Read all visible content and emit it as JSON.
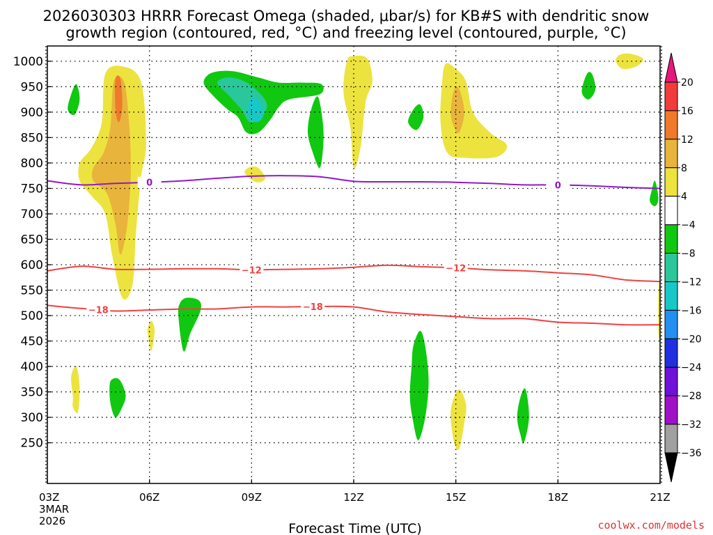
{
  "chart_data": {
    "type": "heatmap",
    "title_line1": "2026030303 HRRR Forecast Omega (shaded, μbar/s) for KB#S with dendritic snow",
    "title_line2": "growth region (contoured, red, °C) and freezing level (contoured, purple, °C)",
    "xlabel": "Forecast Time (UTC)",
    "ylabel": "",
    "credit": "coolwx.com/models",
    "x_ticks": [
      {
        "h": 0,
        "label": "03Z",
        "sub1": "3MAR",
        "sub2": "2026"
      },
      {
        "h": 3,
        "label": "06Z"
      },
      {
        "h": 6,
        "label": "09Z"
      },
      {
        "h": 9,
        "label": "12Z"
      },
      {
        "h": 12,
        "label": "15Z"
      },
      {
        "h": 15,
        "label": "18Z"
      },
      {
        "h": 18,
        "label": "21Z"
      }
    ],
    "xlim": [
      0,
      18
    ],
    "ylim": [
      1030,
      170
    ],
    "y_ticks": [
      250,
      300,
      350,
      400,
      450,
      500,
      550,
      600,
      650,
      700,
      750,
      800,
      850,
      900,
      950,
      1000
    ],
    "colorbar": {
      "levels": [
        -36,
        -32,
        -28,
        -24,
        -20,
        -16,
        -12,
        -8,
        -4,
        4,
        8,
        12,
        16,
        20
      ],
      "labels": [
        "20",
        "16",
        "12",
        "8",
        "4",
        "−4",
        "−8",
        "−12",
        "−16",
        "−20",
        "−24",
        "−28",
        "−32",
        "−36"
      ],
      "colors_top_to_bottom": [
        "#e8177a",
        "#f23c3c",
        "#f07a2a",
        "#e8b43c",
        "#ede33f",
        "#ffffff",
        "#10c810",
        "#2ac79a",
        "#18c8c8",
        "#2190f0",
        "#2030e0",
        "#7010d8",
        "#a010c8",
        "#a0a0a0",
        "#000000"
      ]
    },
    "contours": [
      {
        "name": "-18C",
        "color": "#f04040",
        "label": "−18",
        "points": [
          [
            0,
            520
          ],
          [
            1,
            514
          ],
          [
            2,
            509
          ],
          [
            3,
            511
          ],
          [
            4,
            513
          ],
          [
            5,
            513
          ],
          [
            6,
            517
          ],
          [
            7,
            517
          ],
          [
            8,
            518
          ],
          [
            9,
            517
          ],
          [
            10,
            507
          ],
          [
            11,
            502
          ],
          [
            12,
            498
          ],
          [
            13,
            494
          ],
          [
            14,
            494
          ],
          [
            15,
            487
          ],
          [
            16,
            485
          ],
          [
            17,
            482
          ],
          [
            18,
            482
          ]
        ],
        "label_at": [
          [
            1.5,
            512
          ],
          [
            7.8,
            520
          ]
        ]
      },
      {
        "name": "-12C",
        "color": "#f04040",
        "label": "−12",
        "points": [
          [
            0,
            588
          ],
          [
            1,
            597
          ],
          [
            2,
            591
          ],
          [
            3,
            591
          ],
          [
            4,
            592
          ],
          [
            5,
            592
          ],
          [
            6,
            590
          ],
          [
            7,
            591
          ],
          [
            8,
            592
          ],
          [
            9,
            595
          ],
          [
            10,
            599
          ],
          [
            11,
            596
          ],
          [
            12,
            594
          ],
          [
            13,
            590
          ],
          [
            14,
            588
          ],
          [
            15,
            584
          ],
          [
            16,
            580
          ],
          [
            17,
            570
          ],
          [
            18,
            567
          ]
        ],
        "label_at": [
          [
            6.0,
            593
          ],
          [
            12.0,
            596
          ]
        ]
      },
      {
        "name": "0C freezing level",
        "color": "#9018c8",
        "label": "0",
        "points": [
          [
            0,
            765
          ],
          [
            1,
            757
          ],
          [
            2,
            760
          ],
          [
            3,
            762
          ],
          [
            4,
            765
          ],
          [
            5,
            770
          ],
          [
            6,
            774
          ],
          [
            7,
            775
          ],
          [
            8,
            773
          ],
          [
            9,
            764
          ],
          [
            10,
            763
          ],
          [
            11,
            763
          ],
          [
            12,
            762
          ],
          [
            13,
            760
          ],
          [
            14,
            757
          ],
          [
            15,
            757
          ],
          [
            16,
            755
          ],
          [
            17,
            752
          ],
          [
            18,
            750
          ]
        ],
        "label_at": [
          [
            3.0,
            762
          ],
          [
            15.0,
            757
          ]
        ]
      }
    ],
    "omega_areas": [
      {
        "value": 6,
        "color": "#ede33f",
        "pts": [
          [
            0.95,
            765
          ],
          [
            1.3,
            735
          ],
          [
            1.7,
            700
          ],
          [
            1.9,
            620
          ],
          [
            2.2,
            535
          ],
          [
            2.5,
            560
          ],
          [
            2.6,
            660
          ],
          [
            2.75,
            770
          ],
          [
            2.9,
            840
          ],
          [
            2.75,
            960
          ],
          [
            2.2,
            990
          ],
          [
            1.7,
            975
          ],
          [
            1.6,
            880
          ],
          [
            1.3,
            830
          ],
          [
            0.95,
            800
          ]
        ]
      },
      {
        "value": 10,
        "color": "#e8b43c",
        "pts": [
          [
            1.35,
            765
          ],
          [
            1.75,
            740
          ],
          [
            2.0,
            680
          ],
          [
            2.15,
            620
          ],
          [
            2.35,
            680
          ],
          [
            2.45,
            780
          ],
          [
            2.4,
            880
          ],
          [
            2.25,
            960
          ],
          [
            1.95,
            960
          ],
          [
            1.85,
            870
          ],
          [
            1.65,
            820
          ],
          [
            1.35,
            790
          ]
        ]
      },
      {
        "value": 14,
        "color": "#f07a2a",
        "pts": [
          [
            2.0,
            905
          ],
          [
            2.1,
            880
          ],
          [
            2.2,
            910
          ],
          [
            2.15,
            965
          ],
          [
            2.0,
            965
          ]
        ]
      },
      {
        "value": 6,
        "color": "#ede33f",
        "pts": [
          [
            0.75,
            320
          ],
          [
            0.9,
            310
          ],
          [
            0.95,
            360
          ],
          [
            0.85,
            400
          ],
          [
            0.7,
            380
          ],
          [
            0.75,
            340
          ]
        ]
      },
      {
        "value": 6,
        "color": "#ede33f",
        "pts": [
          [
            2.95,
            465
          ],
          [
            3.05,
            430
          ],
          [
            3.15,
            470
          ],
          [
            3.05,
            490
          ],
          [
            2.95,
            475
          ]
        ]
      },
      {
        "value": 6,
        "color": "#ede33f",
        "pts": [
          [
            5.8,
            780
          ],
          [
            6.15,
            762
          ],
          [
            6.4,
            770
          ],
          [
            6.2,
            790
          ],
          [
            5.95,
            792
          ]
        ]
      },
      {
        "value": 6,
        "color": "#ede33f",
        "pts": [
          [
            8.8,
            1000
          ],
          [
            8.7,
            940
          ],
          [
            8.9,
            870
          ],
          [
            9.0,
            790
          ],
          [
            9.2,
            830
          ],
          [
            9.35,
            920
          ],
          [
            9.55,
            960
          ],
          [
            9.4,
            1005
          ],
          [
            9.0,
            1010
          ]
        ]
      },
      {
        "value": 6,
        "color": "#ede33f",
        "pts": [
          [
            11.85,
            300
          ],
          [
            11.95,
            250
          ],
          [
            12.1,
            238
          ],
          [
            12.25,
            290
          ],
          [
            12.3,
            325
          ],
          [
            12.1,
            355
          ],
          [
            11.9,
            330
          ]
        ]
      },
      {
        "value": 6,
        "color": "#ede33f",
        "pts": [
          [
            11.6,
            960
          ],
          [
            11.55,
            880
          ],
          [
            11.75,
            820
          ],
          [
            12.3,
            810
          ],
          [
            13.2,
            812
          ],
          [
            13.5,
            835
          ],
          [
            13.0,
            860
          ],
          [
            12.5,
            900
          ],
          [
            12.3,
            960
          ],
          [
            12.0,
            985
          ],
          [
            11.7,
            995
          ]
        ]
      },
      {
        "value": 10,
        "color": "#e8b43c",
        "pts": [
          [
            11.85,
            900
          ],
          [
            11.95,
            870
          ],
          [
            12.1,
            860
          ],
          [
            12.25,
            900
          ],
          [
            12.1,
            945
          ],
          [
            11.95,
            945
          ]
        ]
      },
      {
        "value": 6,
        "color": "#ede33f",
        "pts": [
          [
            16.7,
            1000
          ],
          [
            16.9,
            985
          ],
          [
            17.3,
            990
          ],
          [
            17.5,
            1005
          ],
          [
            17.1,
            1015
          ],
          [
            16.8,
            1012
          ]
        ]
      },
      {
        "value": 6,
        "color": "#ede33f",
        "pts": [
          [
            17.95,
            465
          ],
          [
            18.0,
            462
          ],
          [
            18.0,
            560
          ],
          [
            17.95,
            550
          ]
        ]
      },
      {
        "value": -6,
        "color": "#10c810",
        "pts": [
          [
            1.85,
            330
          ],
          [
            2.0,
            300
          ],
          [
            2.2,
            320
          ],
          [
            2.3,
            345
          ],
          [
            2.1,
            375
          ],
          [
            1.85,
            370
          ]
        ]
      },
      {
        "value": -6,
        "color": "#10c810",
        "pts": [
          [
            3.85,
            500
          ],
          [
            4.0,
            430
          ],
          [
            4.2,
            465
          ],
          [
            4.5,
            510
          ],
          [
            4.45,
            530
          ],
          [
            4.1,
            535
          ],
          [
            3.9,
            525
          ]
        ]
      },
      {
        "value": -6,
        "color": "#10c810",
        "pts": [
          [
            0.6,
            905
          ],
          [
            0.8,
            895
          ],
          [
            0.95,
            925
          ],
          [
            0.85,
            955
          ],
          [
            0.7,
            935
          ]
        ]
      },
      {
        "value": -6,
        "color": "#10c810",
        "pts": [
          [
            4.6,
            955
          ],
          [
            4.9,
            930
          ],
          [
            5.3,
            905
          ],
          [
            5.6,
            890
          ],
          [
            5.85,
            860
          ],
          [
            6.2,
            860
          ],
          [
            6.55,
            885
          ],
          [
            6.8,
            910
          ],
          [
            7.1,
            925
          ],
          [
            8.0,
            935
          ],
          [
            8.05,
            955
          ],
          [
            7.5,
            958
          ],
          [
            6.8,
            958
          ],
          [
            6.2,
            968
          ],
          [
            5.5,
            980
          ],
          [
            5.0,
            980
          ],
          [
            4.7,
            972
          ]
        ]
      },
      {
        "value": -10,
        "color": "#2ac79a",
        "pts": [
          [
            5.0,
            955
          ],
          [
            5.3,
            935
          ],
          [
            5.7,
            905
          ],
          [
            5.95,
            880
          ],
          [
            6.3,
            890
          ],
          [
            6.45,
            915
          ],
          [
            6.2,
            940
          ],
          [
            5.8,
            960
          ],
          [
            5.4,
            968
          ],
          [
            5.1,
            965
          ]
        ]
      },
      {
        "value": -14,
        "color": "#18c8c8",
        "pts": [
          [
            5.9,
            895
          ],
          [
            6.15,
            880
          ],
          [
            6.35,
            895
          ],
          [
            6.2,
            925
          ],
          [
            5.95,
            925
          ]
        ]
      },
      {
        "value": -6,
        "color": "#10c810",
        "pts": [
          [
            7.65,
            860
          ],
          [
            7.8,
            820
          ],
          [
            8.0,
            790
          ],
          [
            8.1,
            830
          ],
          [
            8.1,
            875
          ],
          [
            7.95,
            930
          ],
          [
            7.75,
            905
          ]
        ]
      },
      {
        "value": -6,
        "color": "#10c810",
        "pts": [
          [
            10.65,
            340
          ],
          [
            10.75,
            290
          ],
          [
            10.9,
            255
          ],
          [
            11.1,
            300
          ],
          [
            11.2,
            370
          ],
          [
            11.1,
            440
          ],
          [
            10.95,
            470
          ],
          [
            10.75,
            440
          ],
          [
            10.7,
            400
          ]
        ]
      },
      {
        "value": -6,
        "color": "#10c810",
        "pts": [
          [
            10.6,
            880
          ],
          [
            10.85,
            865
          ],
          [
            11.05,
            890
          ],
          [
            10.95,
            915
          ],
          [
            10.75,
            905
          ]
        ]
      },
      {
        "value": -6,
        "color": "#10c810",
        "pts": [
          [
            13.8,
            300
          ],
          [
            13.9,
            265
          ],
          [
            14.0,
            250
          ],
          [
            14.15,
            300
          ],
          [
            14.05,
            355
          ],
          [
            13.9,
            340
          ]
        ]
      },
      {
        "value": -6,
        "color": "#10c810",
        "pts": [
          [
            15.7,
            940
          ],
          [
            15.9,
            925
          ],
          [
            16.1,
            945
          ],
          [
            16.0,
            975
          ],
          [
            15.85,
            975
          ]
        ]
      },
      {
        "value": -6,
        "color": "#10c810",
        "pts": [
          [
            17.7,
            725
          ],
          [
            17.85,
            715
          ],
          [
            17.95,
            730
          ],
          [
            17.85,
            765
          ],
          [
            17.75,
            745
          ]
        ]
      }
    ],
    "ground_color": "#a0522d"
  }
}
